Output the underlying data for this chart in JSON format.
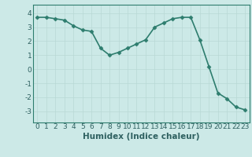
{
  "x": [
    0,
    1,
    2,
    3,
    4,
    5,
    6,
    7,
    8,
    9,
    10,
    11,
    12,
    13,
    14,
    15,
    16,
    17,
    18,
    19,
    20,
    21,
    22,
    23
  ],
  "y": [
    3.7,
    3.7,
    3.6,
    3.5,
    3.1,
    2.8,
    2.7,
    1.5,
    1.0,
    1.2,
    1.5,
    1.8,
    2.1,
    3.0,
    3.3,
    3.6,
    3.7,
    3.7,
    2.1,
    0.2,
    -1.7,
    -2.1,
    -2.7,
    -2.9
  ],
  "line_color": "#2e7d6e",
  "marker": "D",
  "markersize": 2.5,
  "bg_color": "#cce9e7",
  "grid_color": "#b8d8d5",
  "axis_color": "#2e7d6e",
  "xlabel": "Humidex (Indice chaleur)",
  "ylim": [
    -3.8,
    4.6
  ],
  "xlim": [
    -0.5,
    23.5
  ],
  "yticks": [
    4,
    3,
    2,
    1,
    0,
    -1,
    -2,
    -3
  ],
  "xticks": [
    0,
    1,
    2,
    3,
    4,
    5,
    6,
    7,
    8,
    9,
    10,
    11,
    12,
    13,
    14,
    15,
    16,
    17,
    18,
    19,
    20,
    21,
    22,
    23
  ],
  "linewidth": 1.2,
  "font_color": "#2e6060",
  "tick_fontsize": 6.5,
  "xlabel_fontsize": 7.5
}
